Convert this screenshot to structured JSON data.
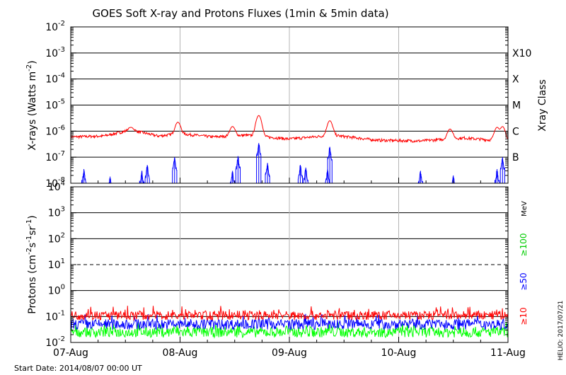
{
  "title": "GOES Soft X-ray and Protons Fluxes   (1min & 5min data)",
  "start_date": "Start Date: 2014/08/07 00:00 UT",
  "credit": "HELIO: 2017/07/21",
  "colors": {
    "xray_long": "#ff0000",
    "xray_short": "#0000ff",
    "p10": "#ff0000",
    "p50": "#0000ff",
    "p100": "#00ff00",
    "frame": "#000000",
    "vgrid": "#b4b4b4"
  },
  "chart_data": [
    {
      "type": "line",
      "title": "GOES Soft X-ray and Protons Fluxes   (1min & 5min data)",
      "x_ticks": [
        "07-Aug",
        "08-Aug",
        "09-Aug",
        "10-Aug",
        "11-Aug"
      ],
      "x_range_days": [
        0,
        4
      ],
      "xlabel": "",
      "ylabel_text": "X-rays (Watts m",
      "ylabel_exp": "-2",
      "ylabel_close": ")",
      "y_scale": "log",
      "ylim": [
        1e-08,
        0.01
      ],
      "y_ticks": [
        {
          "base": "10",
          "exp": "-8"
        },
        {
          "base": "10",
          "exp": "-7"
        },
        {
          "base": "10",
          "exp": "-6"
        },
        {
          "base": "10",
          "exp": "-5"
        },
        {
          "base": "10",
          "exp": "-4"
        },
        {
          "base": "10",
          "exp": "-3"
        },
        {
          "base": "10",
          "exp": "-2"
        }
      ],
      "right_axis_title": "Xray Class",
      "class_labels": [
        {
          "label": "B",
          "value": 1e-07
        },
        {
          "label": "C",
          "value": 1e-06
        },
        {
          "label": "M",
          "value": 1e-05
        },
        {
          "label": "X",
          "value": 0.0001
        },
        {
          "label": "X10",
          "value": 0.001
        }
      ],
      "grid": "horizontal at 1e-7..1e-3, vertical at day boundaries",
      "series": [
        {
          "color": "#ff0000",
          "baseline": [
            [
              0.0,
              6e-07
            ],
            [
              0.3,
              6.5e-07
            ],
            [
              0.55,
              1.1e-06
            ],
            [
              0.8,
              6.5e-07
            ],
            [
              1.0,
              8e-07
            ],
            [
              1.3,
              6e-07
            ],
            [
              1.6,
              7e-07
            ],
            [
              2.0,
              5e-07
            ],
            [
              2.4,
              7e-07
            ],
            [
              2.8,
              4.5e-07
            ],
            [
              3.2,
              4.2e-07
            ],
            [
              3.6,
              5.5e-07
            ],
            [
              4.0,
              4e-07
            ]
          ],
          "peaks": [
            [
              0.55,
              1.4e-06
            ],
            [
              0.98,
              2.2e-06
            ],
            [
              1.48,
              1.5e-06
            ],
            [
              1.72,
              4e-06
            ],
            [
              2.37,
              2.5e-06
            ],
            [
              3.47,
              1.2e-06
            ],
            [
              3.9,
              1.4e-06
            ],
            [
              3.95,
              1.5e-06
            ]
          ]
        },
        {
          "color": "#0000ff",
          "floor": 1e-08,
          "peaks": [
            [
              0.12,
              3.5e-08
            ],
            [
              0.36,
              1.8e-08
            ],
            [
              0.65,
              3e-08
            ],
            [
              0.7,
              5e-08
            ],
            [
              0.95,
              1e-07
            ],
            [
              1.48,
              3e-08
            ],
            [
              1.53,
              1.1e-07
            ],
            [
              1.72,
              3.5e-07
            ],
            [
              1.8,
              6e-08
            ],
            [
              2.1,
              5e-08
            ],
            [
              2.15,
              4e-08
            ],
            [
              2.35,
              3.5e-08
            ],
            [
              2.37,
              2.5e-07
            ],
            [
              3.2,
              3e-08
            ],
            [
              3.5,
              2e-08
            ],
            [
              3.9,
              3.5e-08
            ],
            [
              3.95,
              1e-07
            ]
          ]
        }
      ]
    },
    {
      "type": "line",
      "x_ticks": [
        "07-Aug",
        "08-Aug",
        "09-Aug",
        "10-Aug",
        "11-Aug"
      ],
      "x_range_days": [
        0,
        4
      ],
      "xlabel": "",
      "ylabel_text": "Protons (cm",
      "ylabel_mid": "s",
      "ylabel_sr": "sr",
      "ylabel_e1": "-2",
      "ylabel_e2": "-1",
      "ylabel_e3": "-1",
      "ylabel_close": ")",
      "y_scale": "log",
      "ylim": [
        0.01,
        10000
      ],
      "y_ticks": [
        {
          "base": "10",
          "exp": "-2"
        },
        {
          "base": "10",
          "exp": "-1"
        },
        {
          "base": "10",
          "exp": "0"
        },
        {
          "base": "10",
          "exp": "1"
        },
        {
          "base": "10",
          "exp": "2"
        },
        {
          "base": "10",
          "exp": "3"
        },
        {
          "base": "10",
          "exp": "4"
        }
      ],
      "dashed_level": 10,
      "right_axis_title": "MeV",
      "energy_labels": [
        "≥100",
        "≥50",
        "≥10"
      ],
      "series": [
        {
          "name": "≥10",
          "color": "#ff0000",
          "level": 0.11,
          "spread": 1.5
        },
        {
          "name": "≥50",
          "color": "#0000ff",
          "level": 0.05,
          "spread": 1.6
        },
        {
          "name": "≥100",
          "color": "#00ff00",
          "level": 0.025,
          "spread": 1.6
        }
      ]
    }
  ]
}
